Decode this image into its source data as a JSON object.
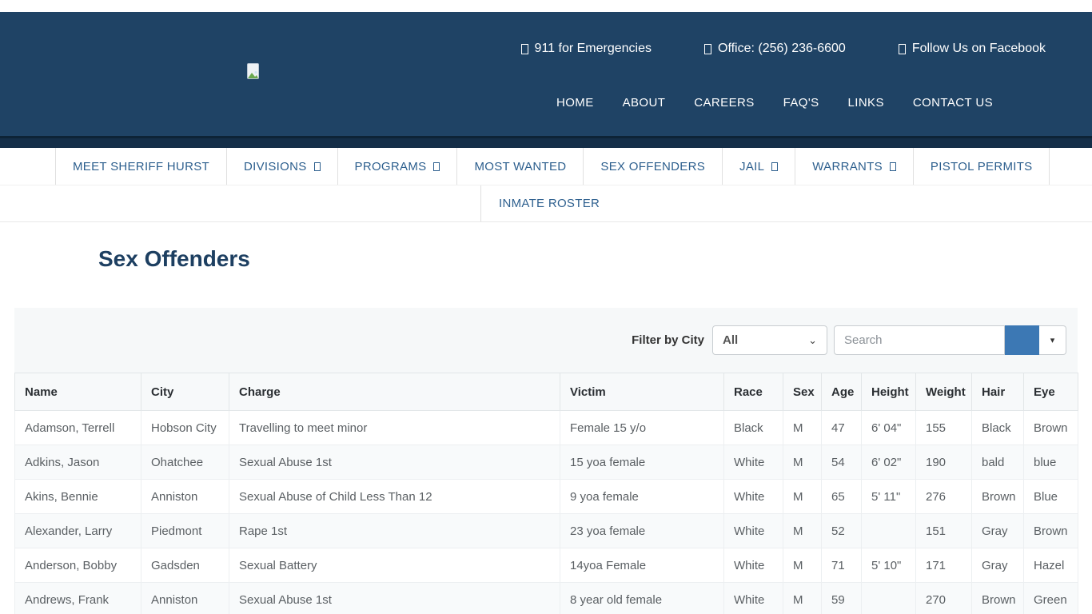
{
  "topbar": {
    "items": [
      "911 for Emergencies",
      "Office: (256) 236-6600",
      "Follow Us on Facebook"
    ]
  },
  "main_nav": {
    "items": [
      "HOME",
      "ABOUT",
      "CAREERS",
      "FAQ'S",
      "LINKS",
      "CONTACT US"
    ]
  },
  "secondary_nav": {
    "items": [
      {
        "label": "MEET SHERIFF HURST",
        "has_dropdown": false
      },
      {
        "label": "DIVISIONS",
        "has_dropdown": true
      },
      {
        "label": "PROGRAMS",
        "has_dropdown": true
      },
      {
        "label": "MOST WANTED",
        "has_dropdown": false
      },
      {
        "label": "SEX OFFENDERS",
        "has_dropdown": false
      },
      {
        "label": "JAIL",
        "has_dropdown": true
      },
      {
        "label": "WARRANTS",
        "has_dropdown": true
      },
      {
        "label": "PISTOL PERMITS",
        "has_dropdown": false
      }
    ]
  },
  "submenu": {
    "label": "INMATE ROSTER"
  },
  "page": {
    "title": "Sex Offenders"
  },
  "filter": {
    "label": "Filter by City",
    "city_selected": "All",
    "search_placeholder": "Search"
  },
  "colors": {
    "header_bg": "#1f4365",
    "header_band": "#142e48",
    "nav_link": "#2d5f8e",
    "title": "#1d3f61",
    "accent_button": "#3c78b4",
    "filter_bg": "#f6f8f9"
  },
  "table": {
    "columns": [
      "Name",
      "City",
      "Charge",
      "Victim",
      "Race",
      "Sex",
      "Age",
      "Height",
      "Weight",
      "Hair",
      "Eye"
    ],
    "rows": [
      [
        "Adamson, Terrell",
        "Hobson City",
        "Travelling to meet minor",
        "Female 15 y/o",
        "Black",
        "M",
        "47",
        "6' 04\"",
        "155",
        "Black",
        "Brown"
      ],
      [
        "Adkins, Jason",
        "Ohatchee",
        "Sexual Abuse 1st",
        "15 yoa female",
        "White",
        "M",
        "54",
        "6' 02\"",
        "190",
        "bald",
        "blue"
      ],
      [
        "Akins, Bennie",
        "Anniston",
        "Sexual Abuse of Child Less Than 12",
        "9 yoa female",
        "White",
        "M",
        "65",
        "5' 11\"",
        "276",
        "Brown",
        "Blue"
      ],
      [
        "Alexander, Larry",
        "Piedmont",
        "Rape 1st",
        "23 yoa female",
        "White",
        "M",
        "52",
        "",
        "151",
        "Gray",
        "Brown"
      ],
      [
        "Anderson, Bobby",
        "Gadsden",
        "Sexual Battery",
        "14yoa Female",
        "White",
        "M",
        "71",
        "5' 10\"",
        "171",
        "Gray",
        "Hazel"
      ],
      [
        "Andrews, Frank",
        "Anniston",
        "Sexual Abuse 1st",
        "8 year old female",
        "White",
        "M",
        "59",
        "",
        "270",
        "Brown",
        "Green"
      ]
    ]
  }
}
